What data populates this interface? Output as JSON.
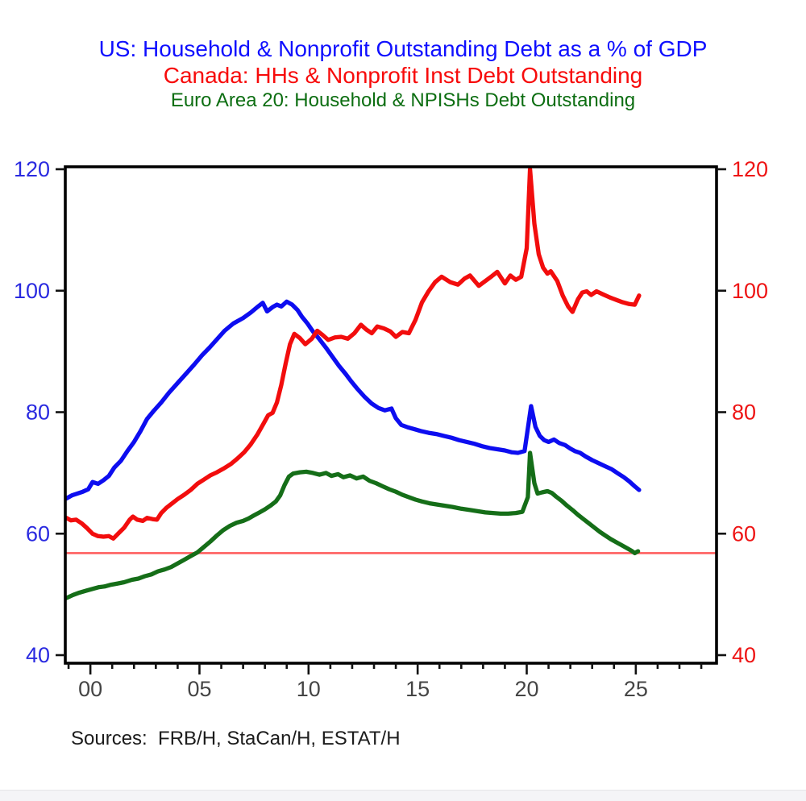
{
  "titles": [
    {
      "text": "US: Household & Nonprofit Outstanding Debt as a % of GDP",
      "color": "#0f0fff"
    },
    {
      "text": "Canada: HHs & Nonprofit Inst Debt Outstanding",
      "color": "#f70b0b"
    },
    {
      "text": "Euro Area 20: Household & NPISHs Debt Outstanding",
      "color": "#0d6e12"
    }
  ],
  "source_note": "Sources:  FRB/H, StaCan/H, ESTAT/H",
  "chart_data": {
    "type": "line",
    "x_unit": "year, '00' = 2000 (values below are year offsets from 2000)",
    "xlim": [
      -1.15,
      28.7
    ],
    "ylim": [
      40,
      120
    ],
    "y_ticks": [
      40,
      60,
      80,
      100,
      120
    ],
    "x_major_ticks": [
      {
        "t": 0,
        "label": "00"
      },
      {
        "t": 5,
        "label": "05"
      },
      {
        "t": 10,
        "label": "10"
      },
      {
        "t": 15,
        "label": "15"
      },
      {
        "t": 20,
        "label": "20"
      },
      {
        "t": 25,
        "label": "25"
      }
    ],
    "x_minor_tick_step": 1,
    "grid": false,
    "legend": "none (series identified by colored title lines)",
    "axis_colors": {
      "left_labels": "#2a2ae0",
      "right_labels": "#ee1414",
      "x_labels": "#454545"
    },
    "frame_color": "#000000",
    "reference_line": {
      "value": 56.8,
      "color": "#ff5a5a"
    },
    "series": [
      {
        "id": "us-line",
        "name": "US: Household & Nonprofit Outstanding Debt as a % of GDP",
        "color": "#0d0df0",
        "points": [
          [
            -1.1,
            65.8
          ],
          [
            -0.85,
            66.3
          ],
          [
            -0.6,
            66.6
          ],
          [
            -0.35,
            66.9
          ],
          [
            -0.1,
            67.3
          ],
          [
            0.1,
            68.5
          ],
          [
            0.35,
            68.2
          ],
          [
            0.6,
            68.8
          ],
          [
            0.85,
            69.5
          ],
          [
            1.1,
            70.9
          ],
          [
            1.4,
            72.0
          ],
          [
            1.7,
            73.6
          ],
          [
            2.0,
            75.1
          ],
          [
            2.3,
            76.9
          ],
          [
            2.6,
            78.9
          ],
          [
            2.9,
            80.2
          ],
          [
            3.25,
            81.6
          ],
          [
            3.6,
            83.2
          ],
          [
            4.0,
            84.8
          ],
          [
            4.4,
            86.4
          ],
          [
            4.75,
            87.8
          ],
          [
            5.1,
            89.3
          ],
          [
            5.45,
            90.6
          ],
          [
            5.8,
            92.0
          ],
          [
            6.15,
            93.4
          ],
          [
            6.55,
            94.6
          ],
          [
            7.0,
            95.5
          ],
          [
            7.35,
            96.4
          ],
          [
            7.65,
            97.3
          ],
          [
            7.9,
            98.0
          ],
          [
            8.1,
            96.6
          ],
          [
            8.35,
            97.3
          ],
          [
            8.55,
            97.7
          ],
          [
            8.75,
            97.4
          ],
          [
            9.0,
            98.2
          ],
          [
            9.25,
            97.7
          ],
          [
            9.5,
            96.8
          ],
          [
            9.7,
            95.7
          ],
          [
            9.95,
            94.6
          ],
          [
            10.2,
            93.3
          ],
          [
            10.5,
            92.0
          ],
          [
            10.8,
            90.6
          ],
          [
            11.1,
            89.1
          ],
          [
            11.4,
            87.6
          ],
          [
            11.7,
            86.3
          ],
          [
            11.95,
            85.1
          ],
          [
            12.25,
            83.8
          ],
          [
            12.55,
            82.6
          ],
          [
            12.9,
            81.4
          ],
          [
            13.2,
            80.7
          ],
          [
            13.5,
            80.3
          ],
          [
            13.8,
            80.6
          ],
          [
            14.0,
            79.0
          ],
          [
            14.25,
            77.9
          ],
          [
            14.55,
            77.5
          ],
          [
            14.85,
            77.2
          ],
          [
            15.15,
            76.9
          ],
          [
            15.5,
            76.6
          ],
          [
            15.85,
            76.4
          ],
          [
            16.2,
            76.1
          ],
          [
            16.55,
            75.8
          ],
          [
            16.9,
            75.4
          ],
          [
            17.25,
            75.1
          ],
          [
            17.6,
            74.8
          ],
          [
            17.95,
            74.4
          ],
          [
            18.3,
            74.1
          ],
          [
            18.65,
            73.9
          ],
          [
            19.0,
            73.7
          ],
          [
            19.3,
            73.4
          ],
          [
            19.6,
            73.3
          ],
          [
            19.9,
            73.6
          ],
          [
            20.1,
            78.5
          ],
          [
            20.2,
            81.0
          ],
          [
            20.4,
            77.6
          ],
          [
            20.6,
            76.1
          ],
          [
            20.8,
            75.4
          ],
          [
            21.0,
            75.1
          ],
          [
            21.25,
            75.5
          ],
          [
            21.5,
            74.9
          ],
          [
            21.75,
            74.6
          ],
          [
            22.0,
            74.0
          ],
          [
            22.2,
            73.6
          ],
          [
            22.45,
            73.3
          ],
          [
            22.7,
            72.7
          ],
          [
            23.0,
            72.1
          ],
          [
            23.3,
            71.6
          ],
          [
            23.6,
            71.1
          ],
          [
            23.9,
            70.6
          ],
          [
            24.15,
            70.0
          ],
          [
            24.45,
            69.3
          ],
          [
            24.7,
            68.6
          ],
          [
            24.95,
            67.8
          ],
          [
            25.15,
            67.2
          ]
        ]
      },
      {
        "id": "canada-line",
        "name": "Canada: HHs & Nonprofit Inst Debt Outstanding",
        "color": "#f20d0d",
        "points": [
          [
            -1.1,
            62.6
          ],
          [
            -0.9,
            62.2
          ],
          [
            -0.65,
            62.3
          ],
          [
            -0.4,
            61.7
          ],
          [
            -0.15,
            60.9
          ],
          [
            0.1,
            60.0
          ],
          [
            0.35,
            59.6
          ],
          [
            0.6,
            59.5
          ],
          [
            0.85,
            59.6
          ],
          [
            1.05,
            59.2
          ],
          [
            1.3,
            60.1
          ],
          [
            1.55,
            61.0
          ],
          [
            1.8,
            62.3
          ],
          [
            1.95,
            62.8
          ],
          [
            2.15,
            62.3
          ],
          [
            2.4,
            62.1
          ],
          [
            2.6,
            62.6
          ],
          [
            2.85,
            62.4
          ],
          [
            3.05,
            62.3
          ],
          [
            3.25,
            63.4
          ],
          [
            3.5,
            64.3
          ],
          [
            3.75,
            65.0
          ],
          [
            4.0,
            65.7
          ],
          [
            4.3,
            66.4
          ],
          [
            4.6,
            67.2
          ],
          [
            4.9,
            68.2
          ],
          [
            5.2,
            68.9
          ],
          [
            5.5,
            69.6
          ],
          [
            5.8,
            70.1
          ],
          [
            6.1,
            70.7
          ],
          [
            6.45,
            71.5
          ],
          [
            6.75,
            72.4
          ],
          [
            7.05,
            73.4
          ],
          [
            7.35,
            74.7
          ],
          [
            7.65,
            76.3
          ],
          [
            7.95,
            78.2
          ],
          [
            8.15,
            79.5
          ],
          [
            8.35,
            79.9
          ],
          [
            8.55,
            81.6
          ],
          [
            8.75,
            84.5
          ],
          [
            8.95,
            88.0
          ],
          [
            9.15,
            91.2
          ],
          [
            9.35,
            92.9
          ],
          [
            9.6,
            92.2
          ],
          [
            9.85,
            91.2
          ],
          [
            10.15,
            92.1
          ],
          [
            10.4,
            93.4
          ],
          [
            10.65,
            92.7
          ],
          [
            10.9,
            91.9
          ],
          [
            11.2,
            92.3
          ],
          [
            11.5,
            92.4
          ],
          [
            11.8,
            92.1
          ],
          [
            12.1,
            93.0
          ],
          [
            12.4,
            94.4
          ],
          [
            12.65,
            93.6
          ],
          [
            12.9,
            93.0
          ],
          [
            13.15,
            94.1
          ],
          [
            13.45,
            93.8
          ],
          [
            13.75,
            93.3
          ],
          [
            14.0,
            92.4
          ],
          [
            14.3,
            93.2
          ],
          [
            14.6,
            93.0
          ],
          [
            14.9,
            95.2
          ],
          [
            15.2,
            98.1
          ],
          [
            15.5,
            99.9
          ],
          [
            15.8,
            101.4
          ],
          [
            16.1,
            102.3
          ],
          [
            16.5,
            101.4
          ],
          [
            16.85,
            101.0
          ],
          [
            17.15,
            102.0
          ],
          [
            17.4,
            102.5
          ],
          [
            17.8,
            100.8
          ],
          [
            18.1,
            101.6
          ],
          [
            18.4,
            102.4
          ],
          [
            18.65,
            103.1
          ],
          [
            19.0,
            101.2
          ],
          [
            19.25,
            102.5
          ],
          [
            19.5,
            101.8
          ],
          [
            19.75,
            102.3
          ],
          [
            20.0,
            107.0
          ],
          [
            20.15,
            120.0
          ],
          [
            20.35,
            111.0
          ],
          [
            20.55,
            106.0
          ],
          [
            20.75,
            103.8
          ],
          [
            20.95,
            102.8
          ],
          [
            21.1,
            103.2
          ],
          [
            21.4,
            101.6
          ],
          [
            21.65,
            99.2
          ],
          [
            21.9,
            97.4
          ],
          [
            22.1,
            96.5
          ],
          [
            22.35,
            98.6
          ],
          [
            22.55,
            99.7
          ],
          [
            22.75,
            99.9
          ],
          [
            22.95,
            99.3
          ],
          [
            23.2,
            99.9
          ],
          [
            23.5,
            99.4
          ],
          [
            23.8,
            98.9
          ],
          [
            24.1,
            98.5
          ],
          [
            24.4,
            98.1
          ],
          [
            24.7,
            97.8
          ],
          [
            24.95,
            97.7
          ],
          [
            25.15,
            99.2
          ]
        ]
      },
      {
        "id": "euro-line",
        "name": "Euro Area 20: Household & NPISHs Debt Outstanding",
        "color": "#156e18",
        "points": [
          [
            -1.1,
            49.4
          ],
          [
            -0.8,
            49.9
          ],
          [
            -0.5,
            50.3
          ],
          [
            -0.2,
            50.6
          ],
          [
            0.1,
            50.9
          ],
          [
            0.4,
            51.2
          ],
          [
            0.65,
            51.3
          ],
          [
            0.95,
            51.6
          ],
          [
            1.25,
            51.8
          ],
          [
            1.55,
            52.0
          ],
          [
            1.9,
            52.4
          ],
          [
            2.2,
            52.6
          ],
          [
            2.5,
            53.0
          ],
          [
            2.8,
            53.3
          ],
          [
            3.1,
            53.8
          ],
          [
            3.4,
            54.1
          ],
          [
            3.7,
            54.5
          ],
          [
            4.0,
            55.1
          ],
          [
            4.3,
            55.7
          ],
          [
            4.6,
            56.3
          ],
          [
            4.9,
            56.9
          ],
          [
            5.2,
            57.8
          ],
          [
            5.5,
            58.7
          ],
          [
            5.8,
            59.7
          ],
          [
            6.1,
            60.6
          ],
          [
            6.4,
            61.3
          ],
          [
            6.7,
            61.8
          ],
          [
            7.0,
            62.1
          ],
          [
            7.25,
            62.5
          ],
          [
            7.5,
            63.0
          ],
          [
            7.75,
            63.5
          ],
          [
            8.0,
            64.0
          ],
          [
            8.25,
            64.6
          ],
          [
            8.5,
            65.3
          ],
          [
            8.7,
            66.3
          ],
          [
            8.9,
            68.0
          ],
          [
            9.1,
            69.4
          ],
          [
            9.3,
            69.9
          ],
          [
            9.6,
            70.1
          ],
          [
            9.9,
            70.2
          ],
          [
            10.2,
            70.0
          ],
          [
            10.5,
            69.7
          ],
          [
            10.8,
            70.0
          ],
          [
            11.05,
            69.5
          ],
          [
            11.35,
            69.8
          ],
          [
            11.6,
            69.3
          ],
          [
            11.9,
            69.6
          ],
          [
            12.2,
            69.1
          ],
          [
            12.5,
            69.4
          ],
          [
            12.8,
            68.7
          ],
          [
            13.1,
            68.3
          ],
          [
            13.4,
            67.8
          ],
          [
            13.7,
            67.3
          ],
          [
            14.0,
            66.9
          ],
          [
            14.3,
            66.4
          ],
          [
            14.6,
            66.0
          ],
          [
            14.9,
            65.6
          ],
          [
            15.2,
            65.3
          ],
          [
            15.55,
            65.0
          ],
          [
            15.9,
            64.8
          ],
          [
            16.25,
            64.6
          ],
          [
            16.6,
            64.4
          ],
          [
            17.0,
            64.1
          ],
          [
            17.4,
            63.9
          ],
          [
            17.75,
            63.7
          ],
          [
            18.1,
            63.5
          ],
          [
            18.45,
            63.4
          ],
          [
            18.8,
            63.3
          ],
          [
            19.15,
            63.3
          ],
          [
            19.5,
            63.4
          ],
          [
            19.8,
            63.6
          ],
          [
            20.05,
            66.0
          ],
          [
            20.15,
            73.3
          ],
          [
            20.35,
            68.3
          ],
          [
            20.5,
            66.6
          ],
          [
            20.7,
            66.8
          ],
          [
            20.95,
            67.0
          ],
          [
            21.15,
            66.7
          ],
          [
            21.35,
            66.1
          ],
          [
            21.6,
            65.4
          ],
          [
            21.85,
            64.6
          ],
          [
            22.1,
            63.9
          ],
          [
            22.35,
            63.1
          ],
          [
            22.6,
            62.4
          ],
          [
            22.85,
            61.7
          ],
          [
            23.1,
            61.0
          ],
          [
            23.35,
            60.3
          ],
          [
            23.6,
            59.7
          ],
          [
            23.85,
            59.1
          ],
          [
            24.1,
            58.6
          ],
          [
            24.35,
            58.1
          ],
          [
            24.6,
            57.6
          ],
          [
            24.8,
            57.2
          ],
          [
            24.95,
            56.8
          ],
          [
            25.1,
            57.1
          ]
        ]
      }
    ]
  }
}
